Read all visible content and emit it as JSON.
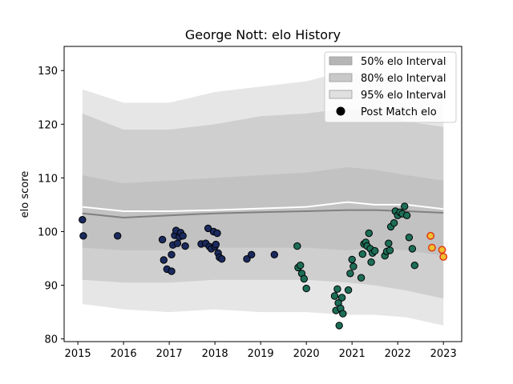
{
  "chart_data": {
    "type": "scatter",
    "title": "George Nott: elo History",
    "xlabel": "",
    "ylabel": "elo score",
    "xlim": [
      2014.7,
      2023.4
    ],
    "ylim": [
      79.5,
      134.5
    ],
    "xticks": [
      2015,
      2016,
      2017,
      2018,
      2019,
      2020,
      2021,
      2022,
      2023
    ],
    "yticks": [
      80,
      90,
      100,
      110,
      120,
      130
    ],
    "grid": false,
    "legend_position": "top-right",
    "legend": [
      {
        "label": "50% elo Interval",
        "kind": "band",
        "color": "#b5b5b5"
      },
      {
        "label": "80% elo Interval",
        "kind": "band",
        "color": "#c9c9c9"
      },
      {
        "label": "95% elo Interval",
        "kind": "band",
        "color": "#e0e0e0"
      },
      {
        "label": "Post Match elo",
        "kind": "marker",
        "color": "#000000"
      }
    ],
    "bands": {
      "x": [
        2015.1,
        2016.0,
        2017.0,
        2018.0,
        2019.0,
        2020.0,
        2020.9,
        2021.5,
        2022.2,
        2023.0
      ],
      "p95_upper": [
        126.5,
        124.0,
        124.0,
        126.0,
        127.0,
        128.0,
        130.0,
        128.5,
        128.0,
        126.0
      ],
      "p80_upper": [
        122.0,
        119.0,
        119.0,
        120.0,
        121.5,
        122.0,
        123.0,
        122.0,
        120.5,
        119.5
      ],
      "p50_upper": [
        110.5,
        109.0,
        109.5,
        110.0,
        110.5,
        111.0,
        112.0,
        111.5,
        110.5,
        109.5
      ],
      "mean": [
        103.4,
        102.6,
        103.0,
        103.4,
        103.6,
        103.8,
        104.0,
        104.0,
        103.8,
        103.5
      ],
      "median": [
        104.6,
        103.8,
        103.8,
        104.0,
        104.3,
        104.6,
        105.5,
        105.0,
        105.0,
        104.2
      ],
      "p50_lower": [
        97.0,
        96.5,
        96.5,
        97.0,
        97.0,
        97.0,
        96.5,
        97.0,
        96.5,
        95.5
      ],
      "p80_lower": [
        91.0,
        90.5,
        90.5,
        91.0,
        91.0,
        91.0,
        90.5,
        90.0,
        89.0,
        87.5
      ],
      "p95_lower": [
        86.5,
        85.5,
        85.0,
        85.5,
        85.0,
        85.0,
        84.5,
        84.5,
        84.0,
        82.5
      ]
    },
    "series": [
      {
        "color": "#1a2a5e",
        "points": [
          [
            2015.1,
            102.2
          ],
          [
            2015.12,
            99.2
          ],
          [
            2015.87,
            99.2
          ],
          [
            2016.85,
            98.5
          ],
          [
            2016.88,
            94.7
          ],
          [
            2016.95,
            93.0
          ],
          [
            2017.05,
            92.6
          ],
          [
            2017.05,
            95.7
          ],
          [
            2017.08,
            97.5
          ],
          [
            2017.12,
            99.3
          ],
          [
            2017.15,
            100.2
          ],
          [
            2017.18,
            97.8
          ],
          [
            2017.22,
            99.0
          ],
          [
            2017.25,
            99.8
          ],
          [
            2017.3,
            99.2
          ],
          [
            2017.35,
            97.3
          ],
          [
            2017.7,
            97.7
          ],
          [
            2017.8,
            97.8
          ],
          [
            2017.85,
            100.6
          ],
          [
            2017.88,
            97.2
          ],
          [
            2017.92,
            96.8
          ],
          [
            2017.97,
            100.0
          ],
          [
            2018.0,
            97.2
          ],
          [
            2018.02,
            97.6
          ],
          [
            2018.05,
            99.7
          ],
          [
            2018.07,
            96.0
          ],
          [
            2018.1,
            95.2
          ],
          [
            2018.15,
            94.9
          ],
          [
            2018.7,
            94.9
          ],
          [
            2018.8,
            95.7
          ],
          [
            2019.3,
            95.7
          ]
        ]
      },
      {
        "color": "#1d6e57",
        "points": [
          [
            2019.8,
            97.3
          ],
          [
            2019.82,
            93.3
          ],
          [
            2019.87,
            93.7
          ],
          [
            2019.9,
            92.2
          ],
          [
            2019.95,
            91.2
          ],
          [
            2020.0,
            89.4
          ],
          [
            2020.62,
            88.0
          ],
          [
            2020.65,
            85.3
          ],
          [
            2020.68,
            89.3
          ],
          [
            2020.7,
            86.7
          ],
          [
            2020.72,
            82.5
          ],
          [
            2020.75,
            85.7
          ],
          [
            2020.78,
            87.7
          ],
          [
            2020.8,
            84.7
          ],
          [
            2020.92,
            89.1
          ],
          [
            2020.96,
            92.2
          ],
          [
            2021.0,
            94.8
          ],
          [
            2021.03,
            93.5
          ],
          [
            2021.2,
            91.4
          ],
          [
            2021.23,
            95.8
          ],
          [
            2021.26,
            97.7
          ],
          [
            2021.3,
            98.0
          ],
          [
            2021.33,
            97.3
          ],
          [
            2021.37,
            99.7
          ],
          [
            2021.4,
            96.8
          ],
          [
            2021.42,
            94.3
          ],
          [
            2021.45,
            96.0
          ],
          [
            2021.5,
            96.4
          ],
          [
            2021.72,
            95.5
          ],
          [
            2021.76,
            96.3
          ],
          [
            2021.8,
            97.8
          ],
          [
            2021.83,
            96.5
          ],
          [
            2021.85,
            100.9
          ],
          [
            2021.92,
            101.6
          ],
          [
            2021.95,
            103.8
          ],
          [
            2022.0,
            103.0
          ],
          [
            2022.05,
            103.6
          ],
          [
            2022.1,
            103.3
          ],
          [
            2022.15,
            104.7
          ],
          [
            2022.2,
            103.0
          ],
          [
            2022.25,
            98.9
          ],
          [
            2022.32,
            96.8
          ],
          [
            2022.37,
            93.7
          ]
        ]
      },
      {
        "color": "#e03010",
        "fill": "#f0c030",
        "points": [
          [
            2022.72,
            99.2
          ],
          [
            2022.75,
            97.0
          ],
          [
            2022.97,
            96.6
          ],
          [
            2023.0,
            95.3
          ]
        ]
      }
    ]
  }
}
